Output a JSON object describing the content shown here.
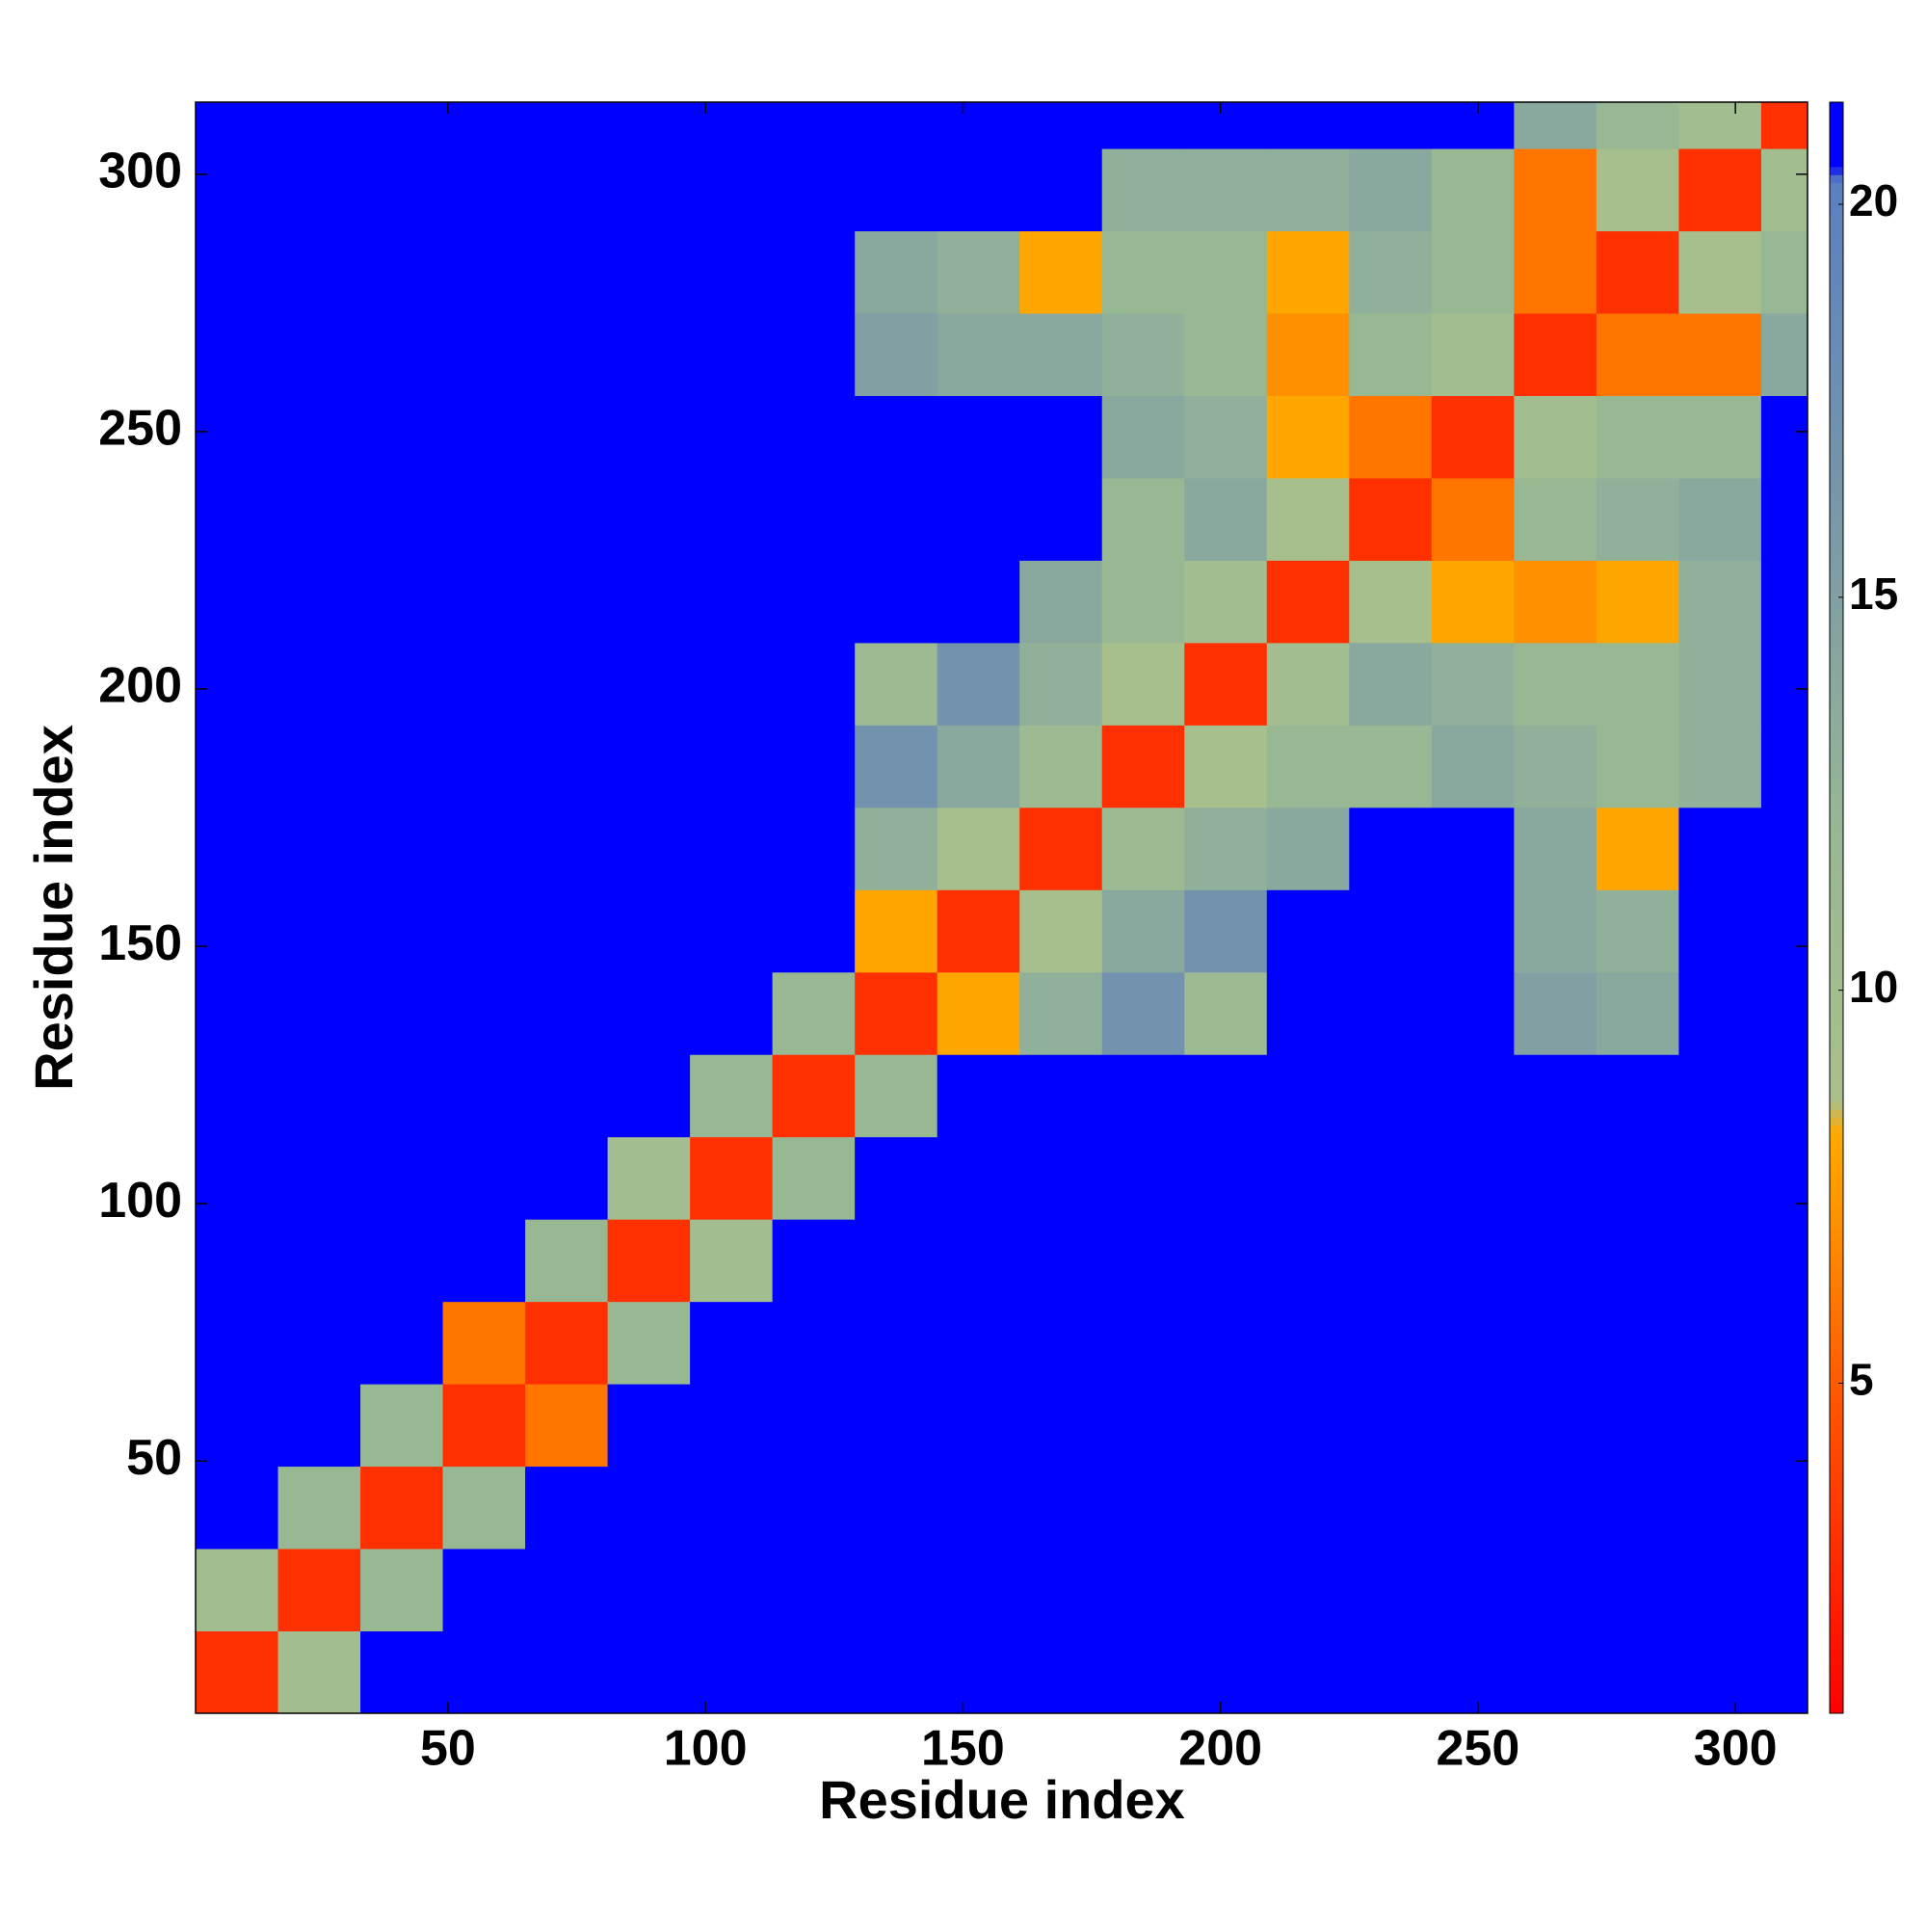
{
  "chart_data": {
    "type": "heatmap",
    "x_label": "Residue index",
    "y_label": "Residue index",
    "x_bins": [
      1,
      17,
      33,
      49,
      65,
      81,
      97,
      113,
      129,
      145,
      161,
      177,
      193,
      209,
      225,
      241,
      257,
      273,
      289,
      305,
      314
    ],
    "y_bins": [
      1,
      17,
      33,
      49,
      65,
      81,
      97,
      113,
      129,
      145,
      161,
      177,
      193,
      209,
      225,
      241,
      257,
      273,
      289,
      305,
      314
    ],
    "values": [
      [
        3,
        10,
        21,
        21,
        21,
        21,
        21,
        21,
        21,
        21,
        21,
        21,
        21,
        21,
        21,
        21,
        21,
        21,
        21,
        21
      ],
      [
        10,
        3,
        12,
        21,
        21,
        21,
        21,
        21,
        21,
        21,
        21,
        21,
        21,
        21,
        21,
        21,
        21,
        21,
        21,
        21
      ],
      [
        21,
        12,
        3,
        12,
        21,
        21,
        21,
        21,
        21,
        21,
        21,
        21,
        21,
        21,
        21,
        21,
        21,
        21,
        21,
        21
      ],
      [
        21,
        21,
        12,
        3,
        6,
        21,
        21,
        21,
        21,
        21,
        21,
        21,
        21,
        21,
        21,
        21,
        21,
        21,
        21,
        21
      ],
      [
        21,
        21,
        21,
        6,
        3,
        12,
        21,
        21,
        21,
        21,
        21,
        21,
        21,
        21,
        21,
        21,
        21,
        21,
        21,
        21
      ],
      [
        21,
        21,
        21,
        21,
        12,
        3,
        10,
        21,
        21,
        21,
        21,
        21,
        21,
        21,
        21,
        21,
        21,
        21,
        21,
        21
      ],
      [
        21,
        21,
        21,
        21,
        21,
        10,
        3,
        12,
        21,
        21,
        21,
        21,
        21,
        21,
        21,
        21,
        21,
        21,
        21,
        21
      ],
      [
        21,
        21,
        21,
        21,
        21,
        21,
        12,
        3,
        12,
        21,
        21,
        21,
        21,
        21,
        21,
        21,
        21,
        21,
        21,
        21
      ],
      [
        21,
        21,
        21,
        21,
        21,
        21,
        21,
        12,
        3,
        8,
        13,
        17,
        11,
        21,
        21,
        21,
        15,
        14,
        21,
        21
      ],
      [
        21,
        21,
        21,
        21,
        21,
        21,
        21,
        21,
        8,
        3,
        9,
        14,
        17,
        21,
        21,
        21,
        14,
        13,
        21,
        21
      ],
      [
        21,
        21,
        21,
        21,
        21,
        21,
        21,
        21,
        13,
        9,
        3,
        11,
        13,
        14,
        21,
        21,
        14,
        8,
        21,
        21
      ],
      [
        21,
        21,
        21,
        21,
        21,
        21,
        21,
        21,
        17,
        14,
        11,
        3,
        9,
        12,
        12,
        14,
        13,
        12,
        13,
        21
      ],
      [
        21,
        21,
        21,
        21,
        21,
        21,
        21,
        21,
        11,
        17,
        13,
        9,
        3,
        10,
        14,
        13,
        12,
        12,
        13,
        21
      ],
      [
        21,
        21,
        21,
        21,
        21,
        21,
        21,
        21,
        21,
        21,
        14,
        12,
        10,
        3,
        9,
        8,
        7,
        8,
        13,
        21
      ],
      [
        21,
        21,
        21,
        21,
        21,
        21,
        21,
        21,
        21,
        21,
        21,
        12,
        14,
        9,
        3,
        6,
        12,
        13,
        14,
        21
      ],
      [
        21,
        21,
        21,
        21,
        21,
        21,
        21,
        21,
        21,
        21,
        21,
        14,
        13,
        8,
        6,
        3,
        10,
        12,
        12,
        21
      ],
      [
        21,
        21,
        21,
        21,
        21,
        21,
        21,
        21,
        15,
        14,
        14,
        13,
        12,
        7,
        12,
        10,
        3,
        6,
        6,
        14
      ],
      [
        21,
        21,
        21,
        21,
        21,
        21,
        21,
        21,
        14,
        13,
        8,
        12,
        12,
        8,
        13,
        12,
        6,
        3,
        9,
        12
      ],
      [
        21,
        21,
        21,
        21,
        21,
        21,
        21,
        21,
        21,
        21,
        21,
        13,
        13,
        13,
        14,
        12,
        6,
        9,
        3,
        10
      ],
      [
        21,
        21,
        21,
        21,
        21,
        21,
        21,
        21,
        21,
        21,
        21,
        21,
        21,
        21,
        21,
        21,
        14,
        12,
        10,
        3
      ]
    ],
    "xlim": [
      1,
      314
    ],
    "ylim": [
      1,
      314
    ],
    "xticks": [
      50,
      100,
      150,
      200,
      250,
      300
    ],
    "yticks": [
      50,
      100,
      150,
      200,
      250,
      300
    ],
    "colorbar_lim": [
      0.8,
      21.3
    ],
    "colorbar_ticks": [
      5,
      10,
      15,
      20
    ],
    "color_stops": [
      [
        0.8,
        "#ff0000"
      ],
      [
        3,
        "#ff3000"
      ],
      [
        5,
        "#ff5a00"
      ],
      [
        7,
        "#ff9000"
      ],
      [
        8.2,
        "#ffaa00"
      ],
      [
        8.6,
        "#a9c08c"
      ],
      [
        12,
        "#98b894"
      ],
      [
        16,
        "#7a98a8"
      ],
      [
        20.3,
        "#5a80c0"
      ],
      [
        20.5,
        "#0000ff"
      ],
      [
        21.3,
        "#0000ff"
      ]
    ]
  }
}
